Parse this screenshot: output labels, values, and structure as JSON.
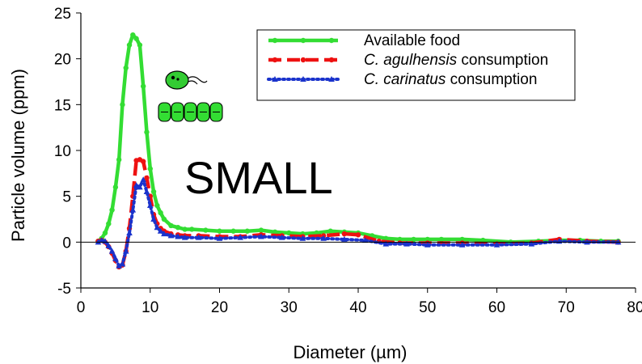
{
  "chart_data": {
    "type": "line",
    "title": "",
    "xlabel": "Diameter (µm)",
    "ylabel": "Particle volume (ppm)",
    "xlim": [
      0,
      80
    ],
    "ylim": [
      -5,
      25
    ],
    "xticks": [
      0,
      10,
      20,
      30,
      40,
      50,
      60,
      70,
      80
    ],
    "yticks": [
      -5,
      0,
      5,
      10,
      15,
      20,
      25
    ],
    "grid": false,
    "zero_line": true,
    "legend_position": "top-right",
    "annotation": "SMALL",
    "series": [
      {
        "name": "Available food",
        "name_parts": [
          {
            "text": "Available food",
            "italic": false
          }
        ],
        "color": "#33dd33",
        "line_style": "solid",
        "marker": "circle",
        "x": [
          2.5,
          3.0,
          3.5,
          4.0,
          4.5,
          5.0,
          5.5,
          6.0,
          6.5,
          7.0,
          7.5,
          8.0,
          8.5,
          9.0,
          9.5,
          10.0,
          10.5,
          11.0,
          11.5,
          12.0,
          13.0,
          14.0,
          15.0,
          16.0,
          18.0,
          20.0,
          22.0,
          24.0,
          26.0,
          28.0,
          30.0,
          32.0,
          34.0,
          36.0,
          38.0,
          40.0,
          42.0,
          44.0,
          46.0,
          48.0,
          50.0,
          52.0,
          55.0,
          58.0,
          62.0,
          66.0,
          69.0,
          72.0,
          75.0,
          77.5
        ],
        "y": [
          0.1,
          0.4,
          1.0,
          2.0,
          3.5,
          6.0,
          9.0,
          15.0,
          19.0,
          21.5,
          22.6,
          22.2,
          21.5,
          17.0,
          12.0,
          8.0,
          5.5,
          4.0,
          3.2,
          2.5,
          1.8,
          1.6,
          1.4,
          1.4,
          1.3,
          1.2,
          1.2,
          1.2,
          1.3,
          1.1,
          1.0,
          0.9,
          1.0,
          1.2,
          1.1,
          1.0,
          0.7,
          0.4,
          0.3,
          0.3,
          0.3,
          0.3,
          0.3,
          0.2,
          0.0,
          0.1,
          0.2,
          0.2,
          0.1,
          0.1
        ]
      },
      {
        "name": "C. agulhensis consumption",
        "name_parts": [
          {
            "text": "C. agulhensis",
            "italic": true
          },
          {
            "text": " consumption",
            "italic": false
          }
        ],
        "color": "#ee1111",
        "line_style": "dashed",
        "marker": "circle",
        "x": [
          2.5,
          3.0,
          3.5,
          4.0,
          4.5,
          5.0,
          5.5,
          6.0,
          6.5,
          7.0,
          7.5,
          8.0,
          8.5,
          9.0,
          9.5,
          10.0,
          10.5,
          11.0,
          11.5,
          12.0,
          13.0,
          14.0,
          15.0,
          17.0,
          20.0,
          23.0,
          26.0,
          29.0,
          32.0,
          35.0,
          38.0,
          40.0,
          43.0,
          46.0,
          50.0,
          55.0,
          60.0,
          65.0,
          69.0,
          73.0,
          77.5
        ],
        "y": [
          0.1,
          0.2,
          0.0,
          -0.5,
          -1.2,
          -2.0,
          -2.7,
          -2.5,
          -1.0,
          1.5,
          5.0,
          8.9,
          9.0,
          8.8,
          7.0,
          5.0,
          3.0,
          2.0,
          1.5,
          1.2,
          0.9,
          0.8,
          0.7,
          0.7,
          0.6,
          0.6,
          0.8,
          0.7,
          0.6,
          0.7,
          0.9,
          0.8,
          0.1,
          -0.1,
          -0.1,
          -0.1,
          -0.2,
          -0.1,
          0.3,
          0.1,
          0.0
        ]
      },
      {
        "name": "C. carinatus consumption",
        "name_parts": [
          {
            "text": "C. carinatus",
            "italic": true
          },
          {
            "text": " consumption",
            "italic": false
          }
        ],
        "color": "#1a33cc",
        "line_style": "dotted",
        "marker": "triangle",
        "x": [
          2.5,
          3.0,
          3.5,
          4.0,
          4.5,
          5.0,
          5.5,
          6.0,
          6.5,
          7.0,
          7.5,
          8.0,
          8.5,
          9.0,
          9.5,
          10.0,
          10.5,
          11.0,
          11.5,
          12.0,
          13.0,
          14.0,
          15.0,
          17.0,
          20.0,
          23.0,
          26.0,
          29.0,
          32.0,
          35.0,
          38.0,
          41.0,
          44.0,
          47.0,
          50.0,
          55.0,
          60.0,
          65.0,
          69.0,
          73.0,
          77.5
        ],
        "y": [
          0.0,
          0.2,
          0.1,
          -0.4,
          -1.0,
          -1.8,
          -2.6,
          -2.4,
          -1.0,
          1.0,
          3.5,
          6.2,
          6.0,
          6.8,
          5.5,
          4.0,
          2.5,
          1.6,
          1.2,
          0.9,
          0.7,
          0.6,
          0.5,
          0.5,
          0.4,
          0.5,
          0.6,
          0.5,
          0.4,
          0.4,
          0.3,
          0.2,
          -0.2,
          -0.2,
          -0.3,
          -0.3,
          -0.3,
          -0.2,
          0.1,
          0.0,
          0.0
        ]
      }
    ]
  },
  "icons": [
    "green-flagellate-cell-icon",
    "green-diatom-chain-icon"
  ]
}
